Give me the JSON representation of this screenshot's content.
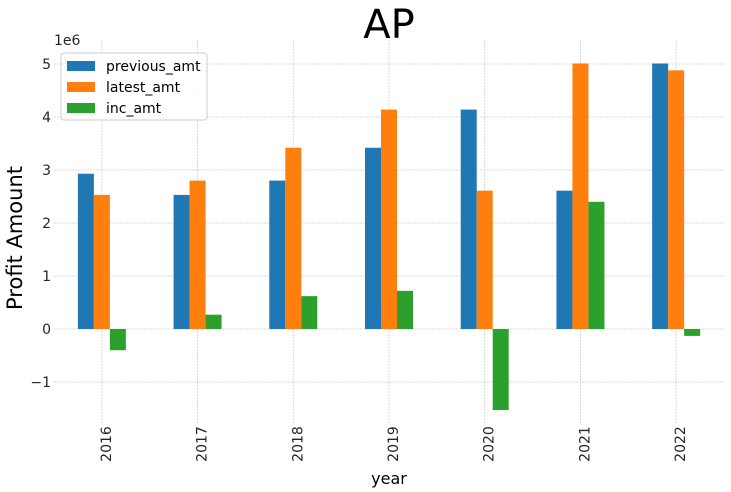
{
  "chart_data": {
    "type": "bar",
    "title": "AP",
    "xlabel": "year",
    "ylabel": "Profit Amount",
    "y_scale_label": "1e6",
    "categories": [
      "2016",
      "2017",
      "2018",
      "2019",
      "2020",
      "2021",
      "2022"
    ],
    "series": [
      {
        "name": "previous_amt",
        "color": "#1f77b4",
        "values": [
          2.93,
          2.53,
          2.8,
          3.42,
          4.14,
          2.61,
          5.01
        ]
      },
      {
        "name": "latest_amt",
        "color": "#ff7f0e",
        "values": [
          2.53,
          2.8,
          3.42,
          4.14,
          2.61,
          5.01,
          4.88
        ]
      },
      {
        "name": "inc_amt",
        "color": "#2ca02c",
        "values": [
          -0.4,
          0.27,
          0.62,
          0.72,
          -1.53,
          2.4,
          -0.13
        ]
      }
    ],
    "yticks": [
      "−1",
      "0",
      "1",
      "2",
      "3",
      "4",
      "5"
    ],
    "ylim": [
      -1.53,
      5.01
    ],
    "grid": true,
    "legend_position": "top-left"
  }
}
